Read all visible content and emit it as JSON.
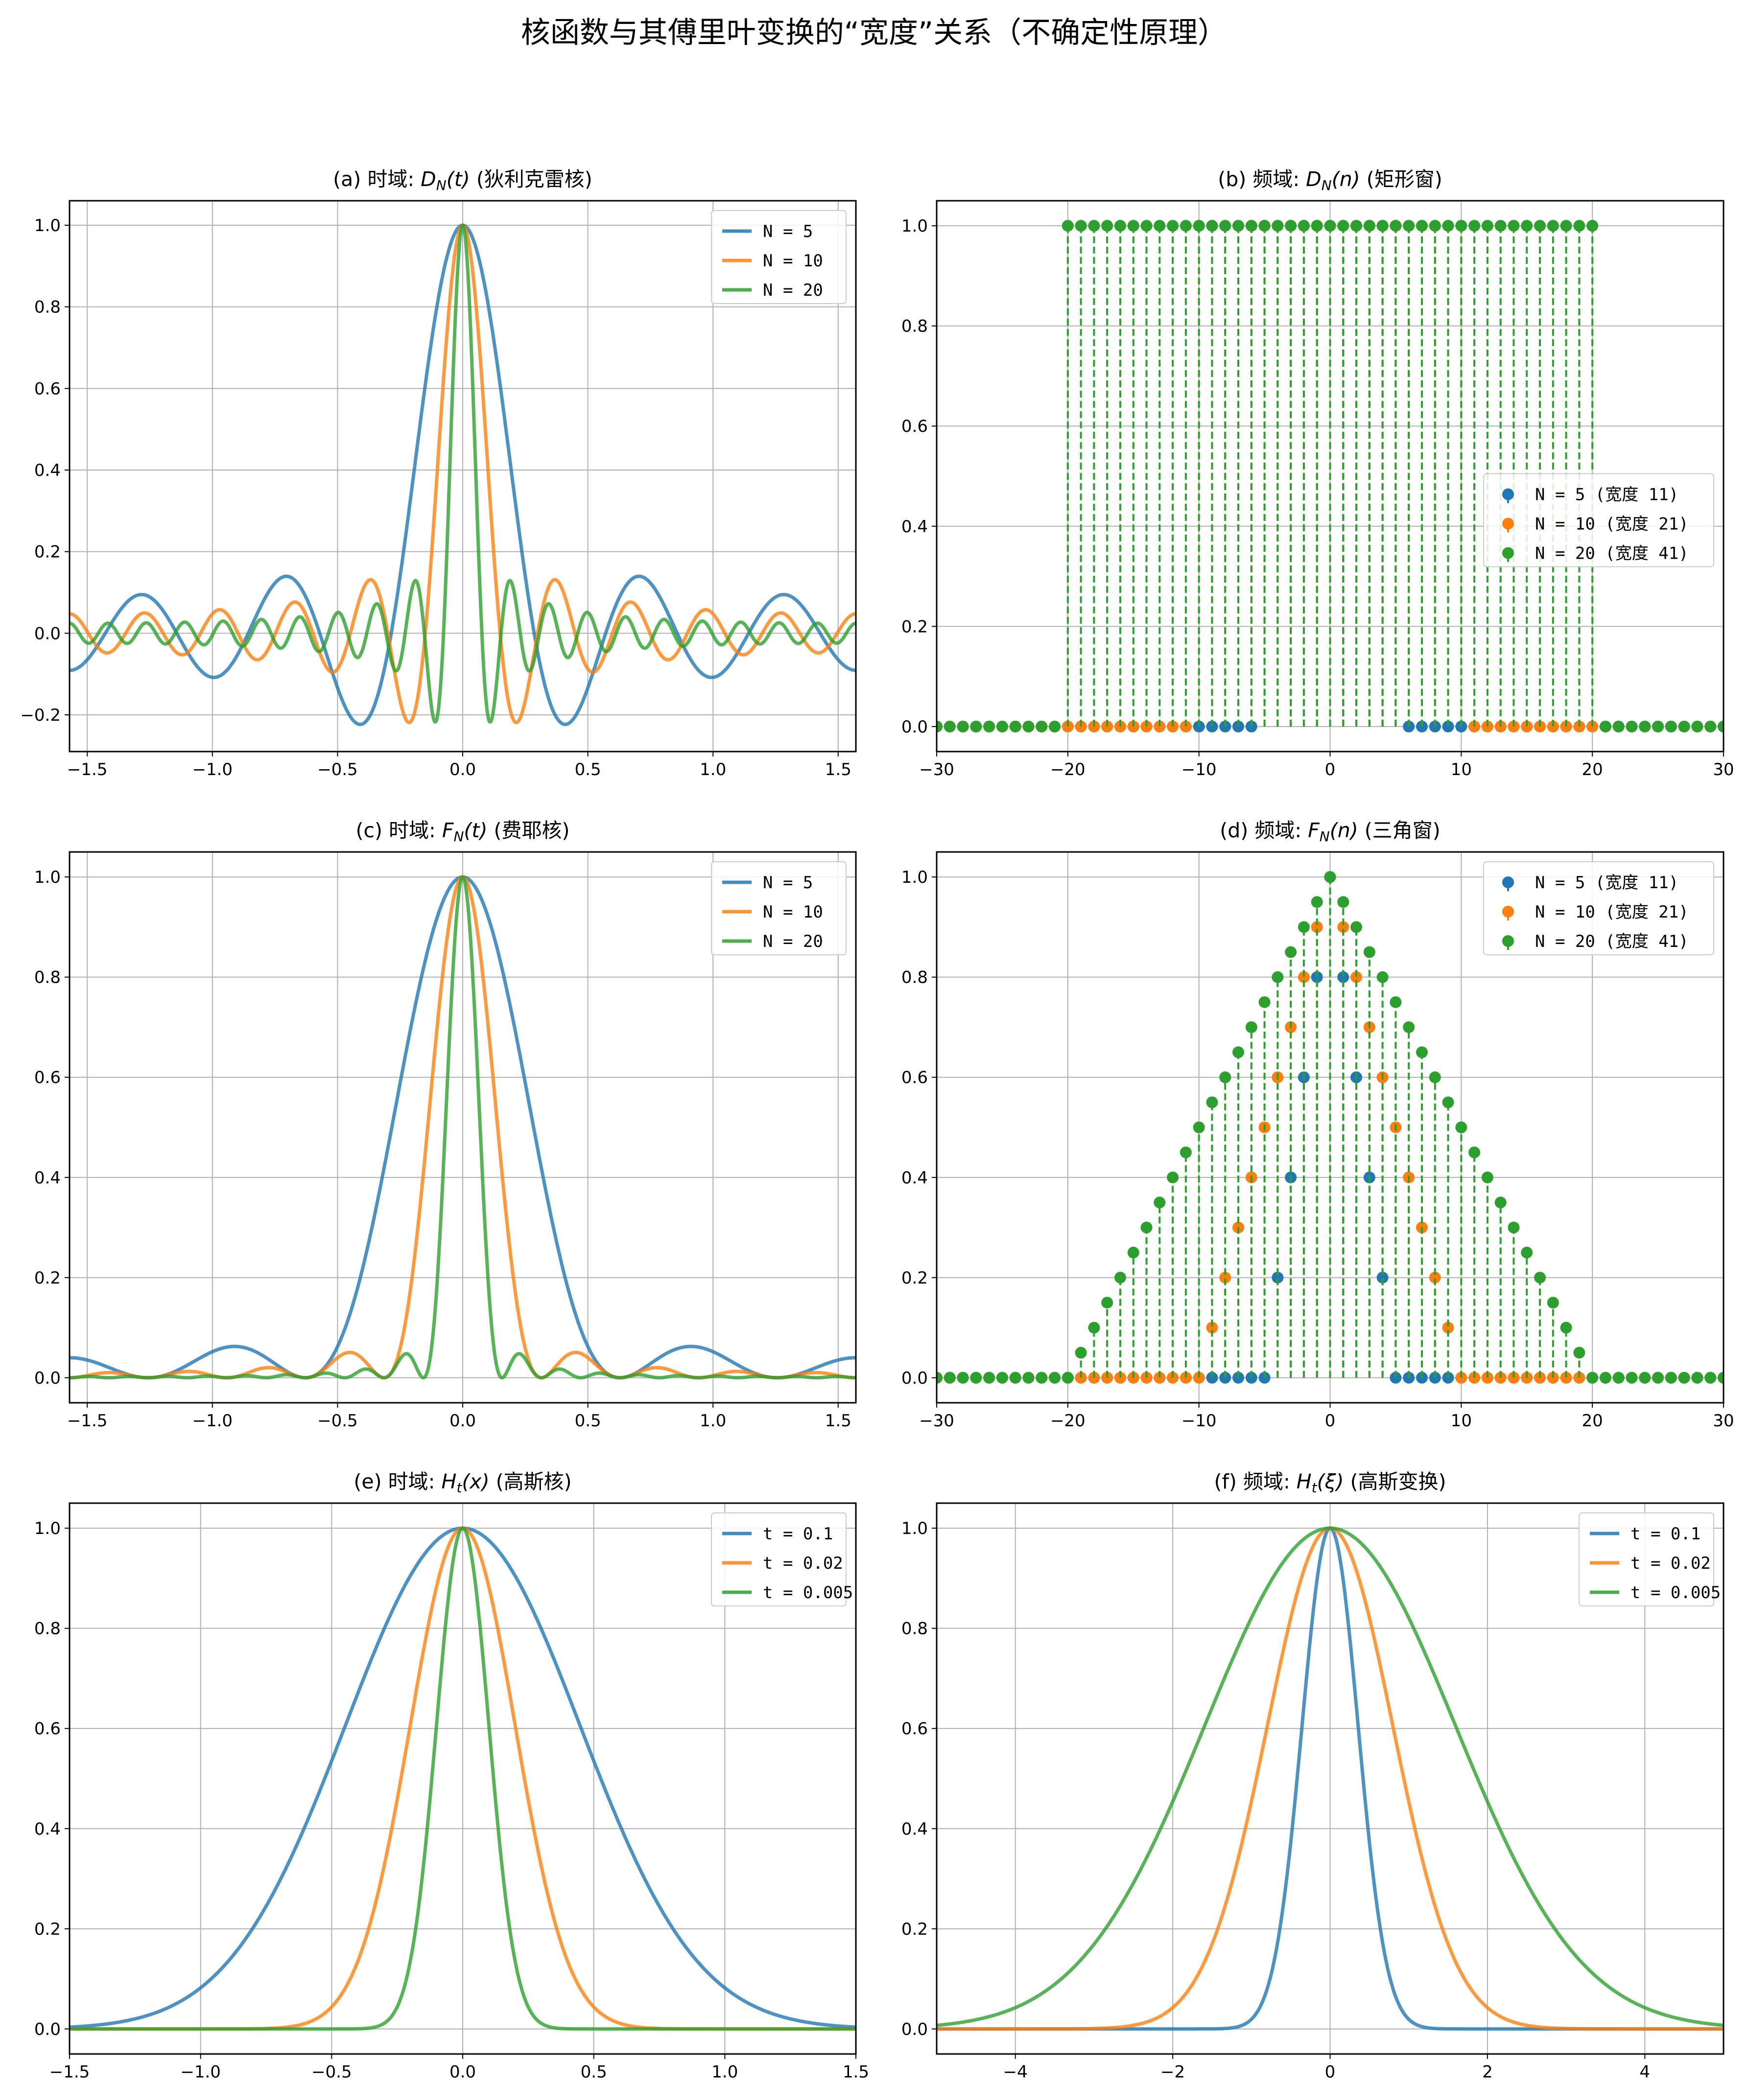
{
  "suptitle": "核函数与其傅里叶变换的“宽度”关系（不确定性原理）",
  "colors": {
    "N5": "#1f77b4",
    "N10": "#ff7f0e",
    "N20": "#2ca02c",
    "grid": "#b0b0b0"
  },
  "chart_data": [
    {
      "id": "a",
      "type": "line",
      "title": {
        "prefix": "(a) 时域: ",
        "sym": "D",
        "sub": "N",
        "arg": "(t)",
        "suffix": " (狄利克雷核)"
      },
      "function": "Dirichlet kernel D_N(t), normalized so D_N(0)=1",
      "series": [
        {
          "name": "N = 5",
          "N": 5
        },
        {
          "name": "N = 10",
          "N": 10
        },
        {
          "name": "N = 20",
          "N": 20
        }
      ],
      "xlim": [
        -1.5708,
        1.5708
      ],
      "ylim": [
        -0.29,
        1.06
      ],
      "xticks": [
        -1.5,
        -1.0,
        -0.5,
        0.0,
        0.5,
        1.0,
        1.5
      ],
      "xticklabels": [
        "−1.5",
        "−1.0",
        "−0.5",
        "0.0",
        "0.5",
        "1.0",
        "1.5"
      ],
      "yticks": [
        -0.2,
        0.0,
        0.2,
        0.4,
        0.6,
        0.8,
        1.0
      ],
      "yticklabels": [
        "−0.2",
        "0.0",
        "0.2",
        "0.4",
        "0.6",
        "0.8",
        "1.0"
      ],
      "legend": "upper right",
      "grid": true
    },
    {
      "id": "b",
      "type": "stem",
      "title": {
        "prefix": "(b) 频域: ",
        "sym": "D",
        "sub": "N",
        "arg": "(n)",
        "suffix": " (矩形窗)"
      },
      "function": "1 if |n| <= N else 0",
      "series": [
        {
          "name": "N = 5 (宽度 11)",
          "N": 5
        },
        {
          "name": "N = 10 (宽度 21)",
          "N": 10
        },
        {
          "name": "N = 20 (宽度 41)",
          "N": 20
        }
      ],
      "n_range": [
        -30,
        30
      ],
      "xlim": [
        -30,
        30
      ],
      "ylim": [
        -0.05,
        1.05
      ],
      "xticks": [
        -30,
        -20,
        -10,
        0,
        10,
        20,
        30
      ],
      "xticklabels": [
        "−30",
        "−20",
        "−10",
        "0",
        "10",
        "20",
        "30"
      ],
      "yticks": [
        0.0,
        0.2,
        0.4,
        0.6,
        0.8,
        1.0
      ],
      "yticklabels": [
        "0.0",
        "0.2",
        "0.4",
        "0.6",
        "0.8",
        "1.0"
      ],
      "legend": "center right",
      "grid": true
    },
    {
      "id": "c",
      "type": "line",
      "title": {
        "prefix": "(c) 时域: ",
        "sym": "F",
        "sub": "N",
        "arg": "(t)",
        "suffix": " (费耶核)"
      },
      "function": "Fejer kernel F_N(t), normalized so F_N(0)=1",
      "series": [
        {
          "name": "N = 5",
          "N": 5
        },
        {
          "name": "N = 10",
          "N": 10
        },
        {
          "name": "N = 20",
          "N": 20
        }
      ],
      "xlim": [
        -1.5708,
        1.5708
      ],
      "ylim": [
        -0.05,
        1.05
      ],
      "xticks": [
        -1.5,
        -1.0,
        -0.5,
        0.0,
        0.5,
        1.0,
        1.5
      ],
      "xticklabels": [
        "−1.5",
        "−1.0",
        "−0.5",
        "0.0",
        "0.5",
        "1.0",
        "1.5"
      ],
      "yticks": [
        0.0,
        0.2,
        0.4,
        0.6,
        0.8,
        1.0
      ],
      "yticklabels": [
        "0.0",
        "0.2",
        "0.4",
        "0.6",
        "0.8",
        "1.0"
      ],
      "legend": "upper right",
      "grid": true
    },
    {
      "id": "d",
      "type": "stem",
      "title": {
        "prefix": "(d) 频域: ",
        "sym": "F",
        "sub": "N",
        "arg": "(n)",
        "suffix": " (三角窗)"
      },
      "function": "max(0, 1 - |n|/N)",
      "series": [
        {
          "name": "N = 5 (宽度 11)",
          "N": 5
        },
        {
          "name": "N = 10 (宽度 21)",
          "N": 10
        },
        {
          "name": "N = 20 (宽度 41)",
          "N": 20
        }
      ],
      "n_range": [
        -30,
        30
      ],
      "xlim": [
        -30,
        30
      ],
      "ylim": [
        -0.05,
        1.05
      ],
      "xticks": [
        -30,
        -20,
        -10,
        0,
        10,
        20,
        30
      ],
      "xticklabels": [
        "−30",
        "−20",
        "−10",
        "0",
        "10",
        "20",
        "30"
      ],
      "yticks": [
        0.0,
        0.2,
        0.4,
        0.6,
        0.8,
        1.0
      ],
      "yticklabels": [
        "0.0",
        "0.2",
        "0.4",
        "0.6",
        "0.8",
        "1.0"
      ],
      "legend": "upper right",
      "grid": true
    },
    {
      "id": "e",
      "type": "line",
      "title": {
        "prefix": "(e) 时域: ",
        "sym": "H",
        "sub": "t",
        "arg": "(x)",
        "suffix": " (高斯核)"
      },
      "function": "exp(-x^2 / (4t))",
      "series": [
        {
          "name": "t = 0.1",
          "t": 0.1
        },
        {
          "name": "t = 0.02",
          "t": 0.02
        },
        {
          "name": "t = 0.005",
          "t": 0.005
        }
      ],
      "xlim": [
        -1.5,
        1.5
      ],
      "ylim": [
        -0.05,
        1.05
      ],
      "xticks": [
        -1.5,
        -1.0,
        -0.5,
        0.0,
        0.5,
        1.0,
        1.5
      ],
      "xticklabels": [
        "−1.5",
        "−1.0",
        "−0.5",
        "0.0",
        "0.5",
        "1.0",
        "1.5"
      ],
      "yticks": [
        0.0,
        0.2,
        0.4,
        0.6,
        0.8,
        1.0
      ],
      "yticklabels": [
        "0.0",
        "0.2",
        "0.4",
        "0.6",
        "0.8",
        "1.0"
      ],
      "legend": "upper right",
      "grid": true
    },
    {
      "id": "f",
      "type": "line",
      "title": {
        "prefix": "(f) 频域: ",
        "sym": "H",
        "sub": "t",
        "arg": "(ξ)",
        "suffix": " (高斯变换)"
      },
      "function": "exp(-t * (2*pi*xi)^2)",
      "series": [
        {
          "name": "t = 0.1",
          "t": 0.1
        },
        {
          "name": "t = 0.02",
          "t": 0.02
        },
        {
          "name": "t = 0.005",
          "t": 0.005
        }
      ],
      "xlim": [
        -5,
        5
      ],
      "ylim": [
        -0.05,
        1.05
      ],
      "xticks": [
        -4,
        -2,
        0,
        2,
        4
      ],
      "xticklabels": [
        "−4",
        "−2",
        "0",
        "2",
        "4"
      ],
      "yticks": [
        0.0,
        0.2,
        0.4,
        0.6,
        0.8,
        1.0
      ],
      "yticklabels": [
        "0.0",
        "0.2",
        "0.4",
        "0.6",
        "0.8",
        "1.0"
      ],
      "legend": "upper right",
      "grid": true
    }
  ]
}
